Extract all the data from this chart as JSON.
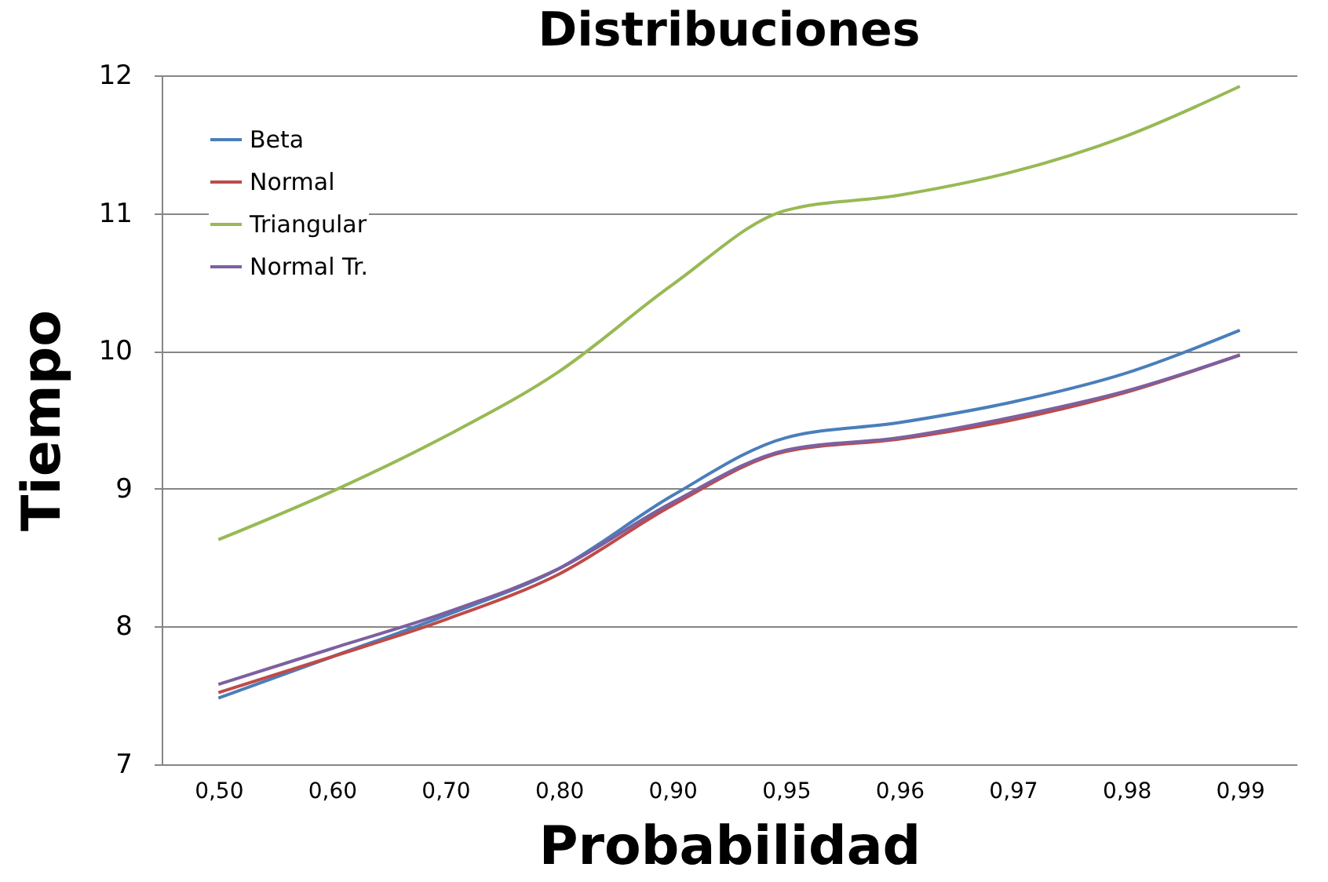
{
  "chart_data": {
    "type": "line",
    "title": "Distribuciones",
    "xlabel": "Probabilidad",
    "ylabel": "Tiempo",
    "categories": [
      "0,50",
      "0,60",
      "0,70",
      "0,80",
      "0,90",
      "0,95",
      "0,96",
      "0,97",
      "0,98",
      "0,99"
    ],
    "series": [
      {
        "name": "Beta",
        "color": "#4a7ebb",
        "values": [
          7.48,
          7.78,
          8.08,
          8.42,
          8.95,
          9.37,
          9.48,
          9.63,
          9.84,
          10.15
        ]
      },
      {
        "name": "Normal",
        "color": "#be4b48",
        "values": [
          7.52,
          7.78,
          8.05,
          8.38,
          8.88,
          9.27,
          9.36,
          9.5,
          9.7,
          9.97
        ]
      },
      {
        "name": "Triangular",
        "color": "#98b954",
        "values": [
          8.63,
          8.98,
          9.38,
          9.85,
          10.48,
          11.02,
          11.13,
          11.3,
          11.56,
          11.92
        ]
      },
      {
        "name": "Normal Tr.",
        "color": "#7d60a0",
        "values": [
          7.58,
          7.84,
          8.1,
          8.42,
          8.9,
          9.28,
          9.37,
          9.52,
          9.71,
          9.97
        ]
      }
    ],
    "ylim": [
      7,
      12
    ],
    "yticks": [
      7,
      8,
      9,
      10,
      11,
      12
    ],
    "grid": "y",
    "legend": "top left",
    "marker": "none",
    "line_style": "solid"
  }
}
